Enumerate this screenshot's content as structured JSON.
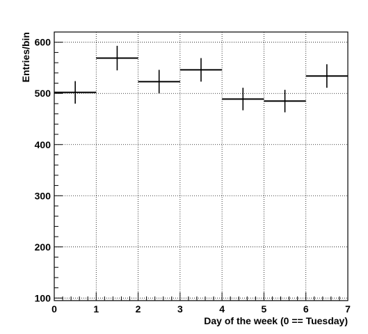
{
  "chart_data": {
    "type": "scatter",
    "style": "histogram-error-bars",
    "xlabel": "Day of the week (0 == Tuesday)",
    "ylabel": "Entries/bin",
    "xlim": [
      0,
      7
    ],
    "ylim": [
      95,
      620
    ],
    "x_ticks": [
      0,
      1,
      2,
      3,
      4,
      5,
      6,
      7
    ],
    "y_ticks": [
      100,
      200,
      300,
      400,
      500,
      600
    ],
    "grid": true,
    "bins": [
      {
        "x_low": 0,
        "x_high": 1,
        "value": 502,
        "error": 22
      },
      {
        "x_low": 1,
        "x_high": 2,
        "value": 569,
        "error": 24
      },
      {
        "x_low": 2,
        "x_high": 3,
        "value": 523,
        "error": 23
      },
      {
        "x_low": 3,
        "x_high": 4,
        "value": 546,
        "error": 23
      },
      {
        "x_low": 4,
        "x_high": 5,
        "value": 489,
        "error": 22
      },
      {
        "x_low": 5,
        "x_high": 6,
        "value": 485,
        "error": 22
      },
      {
        "x_low": 6,
        "x_high": 7,
        "value": 534,
        "error": 23
      }
    ]
  }
}
